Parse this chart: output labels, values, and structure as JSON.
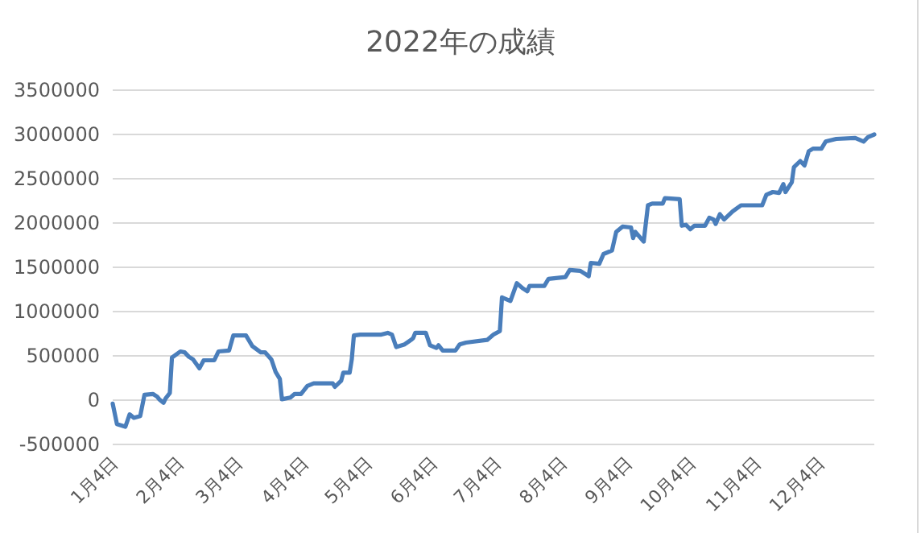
{
  "chart_data": {
    "type": "line",
    "title": "2022年の成績",
    "color": "#4a7ebb",
    "grid": "y",
    "x": [
      "2022-01-04",
      "2022-01-06",
      "2022-01-10",
      "2022-01-12",
      "2022-01-14",
      "2022-01-17",
      "2022-01-19",
      "2022-01-23",
      "2022-01-25",
      "2022-01-26",
      "2022-01-28",
      "2022-01-29",
      "2022-01-31",
      "2022-02-01",
      "2022-02-05",
      "2022-02-07",
      "2022-02-09",
      "2022-02-11",
      "2022-02-14",
      "2022-02-16",
      "2022-02-21",
      "2022-02-23",
      "2022-02-28",
      "2022-03-02",
      "2022-03-08",
      "2022-03-11",
      "2022-03-15",
      "2022-03-17",
      "2022-03-20",
      "2022-03-22",
      "2022-03-24",
      "2022-03-25",
      "2022-03-29",
      "2022-03-31",
      "2022-04-03",
      "2022-04-06",
      "2022-04-09",
      "2022-04-18",
      "2022-04-19",
      "2022-04-22",
      "2022-04-23",
      "2022-04-26",
      "2022-04-27",
      "2022-04-28",
      "2022-05-01",
      "2022-05-11",
      "2022-05-14",
      "2022-05-16",
      "2022-05-18",
      "2022-05-22",
      "2022-05-25",
      "2022-05-26",
      "2022-05-27",
      "2022-06-01",
      "2022-06-03",
      "2022-06-06",
      "2022-06-07",
      "2022-06-09",
      "2022-06-15",
      "2022-06-17",
      "2022-06-20",
      "2022-06-30",
      "2022-07-03",
      "2022-07-06",
      "2022-07-07",
      "2022-07-11",
      "2022-07-14",
      "2022-07-17",
      "2022-07-19",
      "2022-07-20",
      "2022-07-27",
      "2022-07-29",
      "2022-08-06",
      "2022-08-08",
      "2022-08-13",
      "2022-08-17",
      "2022-08-18",
      "2022-08-22",
      "2022-08-24",
      "2022-08-28",
      "2022-08-30",
      "2022-09-02",
      "2022-09-06",
      "2022-09-07",
      "2022-09-08",
      "2022-09-12",
      "2022-09-14",
      "2022-09-16",
      "2022-09-21",
      "2022-09-22",
      "2022-09-29",
      "2022-09-30",
      "2022-10-02",
      "2022-10-04",
      "2022-10-06",
      "2022-10-11",
      "2022-10-13",
      "2022-10-15",
      "2022-10-16",
      "2022-10-18",
      "2022-10-20",
      "2022-10-24",
      "2022-10-28",
      "2022-11-07",
      "2022-11-09",
      "2022-11-12",
      "2022-11-15",
      "2022-11-17",
      "2022-11-18",
      "2022-11-21",
      "2022-11-22",
      "2022-11-25",
      "2022-11-27",
      "2022-11-29",
      "2022-12-01",
      "2022-12-05",
      "2022-12-07",
      "2022-12-12",
      "2022-12-21",
      "2022-12-25",
      "2022-12-27",
      "2022-12-30"
    ],
    "values": [
      -40000,
      -270000,
      -300000,
      -160000,
      -200000,
      -180000,
      60000,
      70000,
      40000,
      10000,
      -30000,
      20000,
      80000,
      480000,
      550000,
      540000,
      490000,
      460000,
      360000,
      450000,
      450000,
      550000,
      560000,
      730000,
      730000,
      610000,
      540000,
      540000,
      460000,
      320000,
      240000,
      10000,
      30000,
      70000,
      70000,
      160000,
      190000,
      190000,
      150000,
      220000,
      310000,
      310000,
      460000,
      730000,
      740000,
      740000,
      760000,
      740000,
      600000,
      630000,
      680000,
      700000,
      760000,
      760000,
      620000,
      590000,
      620000,
      560000,
      560000,
      630000,
      650000,
      680000,
      740000,
      780000,
      1160000,
      1120000,
      1320000,
      1260000,
      1230000,
      1290000,
      1290000,
      1370000,
      1390000,
      1470000,
      1460000,
      1400000,
      1550000,
      1540000,
      1650000,
      1690000,
      1900000,
      1960000,
      1950000,
      1830000,
      1900000,
      1790000,
      2200000,
      2220000,
      2220000,
      2280000,
      2270000,
      1970000,
      1980000,
      1930000,
      1970000,
      1970000,
      2060000,
      2040000,
      1990000,
      2100000,
      2040000,
      2130000,
      2200000,
      2200000,
      2320000,
      2350000,
      2340000,
      2440000,
      2350000,
      2460000,
      2630000,
      2700000,
      2650000,
      2810000,
      2840000,
      2840000,
      2920000,
      2950000,
      2960000,
      2920000,
      2970000,
      3000000
    ],
    "xlim": [
      "2022-01-04",
      "2022-12-30"
    ],
    "xticks": [
      {
        "value": "2022-01-04",
        "label": "1月4日"
      },
      {
        "value": "2022-02-04",
        "label": "2月4日"
      },
      {
        "value": "2022-03-04",
        "label": "3月4日"
      },
      {
        "value": "2022-04-04",
        "label": "4月4日"
      },
      {
        "value": "2022-05-04",
        "label": "5月4日"
      },
      {
        "value": "2022-06-04",
        "label": "6月4日"
      },
      {
        "value": "2022-07-04",
        "label": "7月4日"
      },
      {
        "value": "2022-08-04",
        "label": "8月4日"
      },
      {
        "value": "2022-09-04",
        "label": "9月4日"
      },
      {
        "value": "2022-10-04",
        "label": "10月4日"
      },
      {
        "value": "2022-11-04",
        "label": "11月4日"
      },
      {
        "value": "2022-12-04",
        "label": "12月4日"
      }
    ],
    "ylim": [
      -500000,
      3500000
    ],
    "yticks": [
      -500000,
      0,
      500000,
      1000000,
      1500000,
      2000000,
      2500000,
      3000000,
      3500000
    ]
  }
}
